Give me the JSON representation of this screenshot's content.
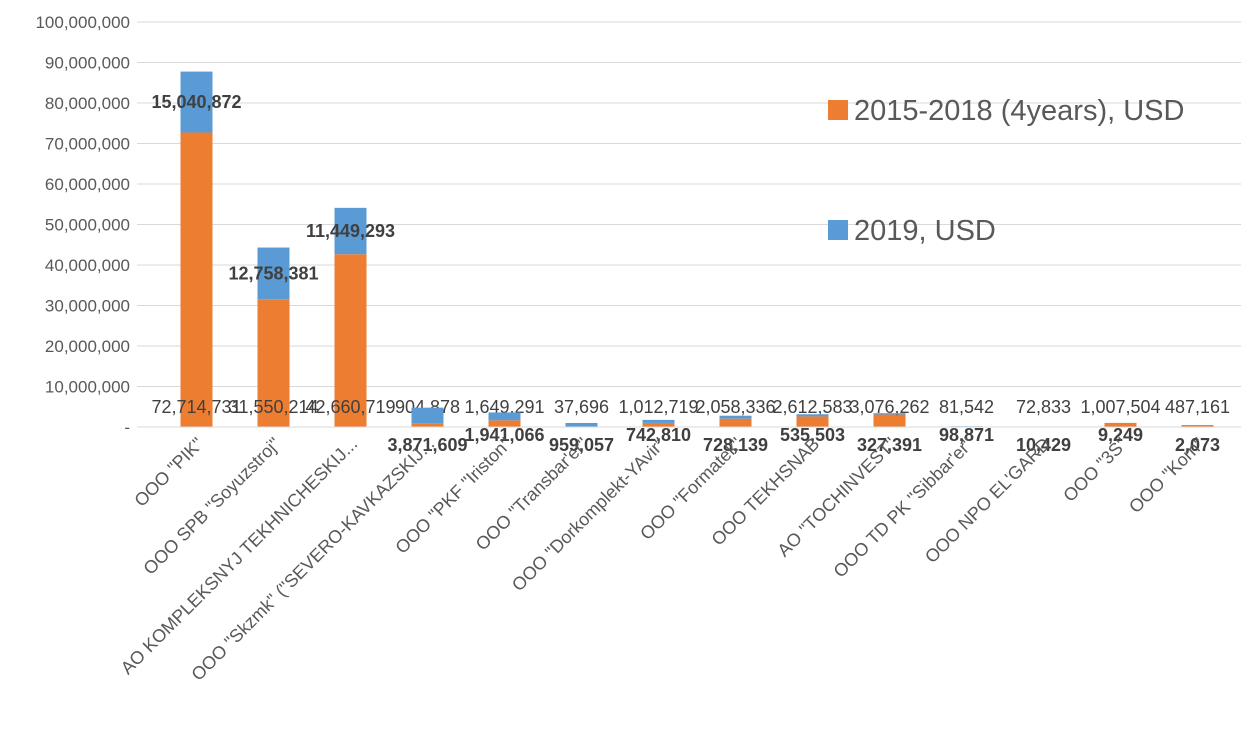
{
  "chart_data": {
    "type": "stacked_bar",
    "categories": [
      "OOO \"PIK\"",
      "OOO SPB \"Soyuzstroj\"",
      "AO KOMPLEKSNYJ TEKHNICHESKIJ...",
      "OOO \"Skzmk\" (\"SEVERO-KAVKAZSKIJ...",
      "OOO \"PKF \"Iriston\"",
      "OOO \"Transbar'er\"",
      "OOO \"Dorkomplekt-YAvir\"",
      "OOO \"Formatek\"",
      "OOO TEKHSNAB",
      "AO \"TOCHINVEST\"",
      "OOO TD PK \"Sibbar'er\"",
      "OOO NPO EL'GARD",
      "OOO \"3S\"",
      "OOO \"Korn\""
    ],
    "series": [
      {
        "name": "2015-2018 (4years), USD",
        "color": "#ed7d31",
        "values": [
          72714731,
          31550214,
          42660719,
          904878,
          1649291,
          37696,
          1012719,
          2058336,
          2612583,
          3076262,
          81542,
          72833,
          1007504,
          487161
        ],
        "value_labels": [
          "72,714,731",
          "31,550,214",
          "42,660,719",
          "904,878",
          "1,649,291",
          "37,696",
          "1,012,719",
          "2,058,336",
          "2,612,583",
          "3,076,262",
          "81,542",
          "72,833",
          "1,007,504",
          "487,161"
        ]
      },
      {
        "name": "2019, USD",
        "color": "#5b9bd5",
        "values": [
          15040872,
          12758381,
          11449293,
          3871609,
          1941066,
          959057,
          742810,
          728139,
          535503,
          327391,
          98871,
          10429,
          9249,
          2073
        ],
        "value_labels": [
          "15,040,872",
          "12,758,381",
          "11,449,293",
          "3,871,609",
          "1,941,066",
          "959,057",
          "742,810",
          "728,139",
          "535,503",
          "327,391",
          "98,871",
          "10,429",
          "9,249",
          "2,073"
        ]
      }
    ],
    "ylim": [
      0,
      100000000
    ],
    "yticks": [
      {
        "value": 0,
        "label": "-"
      },
      {
        "value": 10000000,
        "label": "10,000,000"
      },
      {
        "value": 20000000,
        "label": "20,000,000"
      },
      {
        "value": 30000000,
        "label": "30,000,000"
      },
      {
        "value": 40000000,
        "label": "40,000,000"
      },
      {
        "value": 50000000,
        "label": "50,000,000"
      },
      {
        "value": 60000000,
        "label": "60,000,000"
      },
      {
        "value": 70000000,
        "label": "70,000,000"
      },
      {
        "value": 80000000,
        "label": "80,000,000"
      },
      {
        "value": 90000000,
        "label": "90,000,000"
      },
      {
        "value": 100000000,
        "label": "100,000,000"
      }
    ],
    "grid": true,
    "legend": "right"
  }
}
